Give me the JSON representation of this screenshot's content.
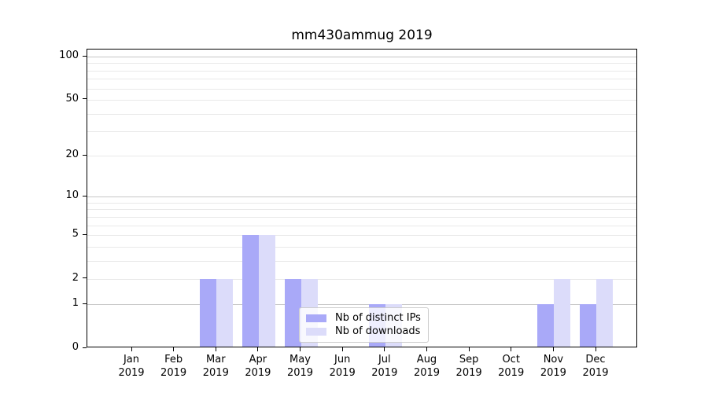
{
  "chart_data": {
    "type": "bar",
    "title": "mm430ammug 2019",
    "x_tick_labels": [
      [
        "Jan",
        "2019"
      ],
      [
        "Feb",
        "2019"
      ],
      [
        "Mar",
        "2019"
      ],
      [
        "Apr",
        "2019"
      ],
      [
        "May",
        "2019"
      ],
      [
        "Jun",
        "2019"
      ],
      [
        "Jul",
        "2019"
      ],
      [
        "Aug",
        "2019"
      ],
      [
        "Sep",
        "2019"
      ],
      [
        "Oct",
        "2019"
      ],
      [
        "Nov",
        "2019"
      ],
      [
        "Dec",
        "2019"
      ]
    ],
    "series": [
      {
        "name": "Nb of distinct IPs",
        "color": "#a9a9f8",
        "values": [
          0,
          0,
          2,
          5,
          2,
          0,
          1,
          0,
          0,
          0,
          1,
          1
        ]
      },
      {
        "name": "Nb of downloads",
        "color": "#dcdcfa",
        "values": [
          0,
          0,
          2,
          5,
          2,
          0,
          1,
          0,
          0,
          0,
          2,
          2
        ]
      }
    ],
    "y_axis": {
      "scale": "log1p",
      "ticks": [
        0,
        1,
        2,
        5,
        10,
        20,
        50,
        100
      ],
      "minor_ticks": [
        3,
        4,
        6,
        7,
        8,
        9,
        30,
        40,
        60,
        70,
        80,
        90
      ],
      "max": 112
    },
    "grid": true,
    "legend_position": "lower-center"
  },
  "colors": {
    "grid_major": "#c6c6c6",
    "grid_minor": "#e9e9e9",
    "axis": "#000000",
    "legend_border": "#cccccc"
  }
}
